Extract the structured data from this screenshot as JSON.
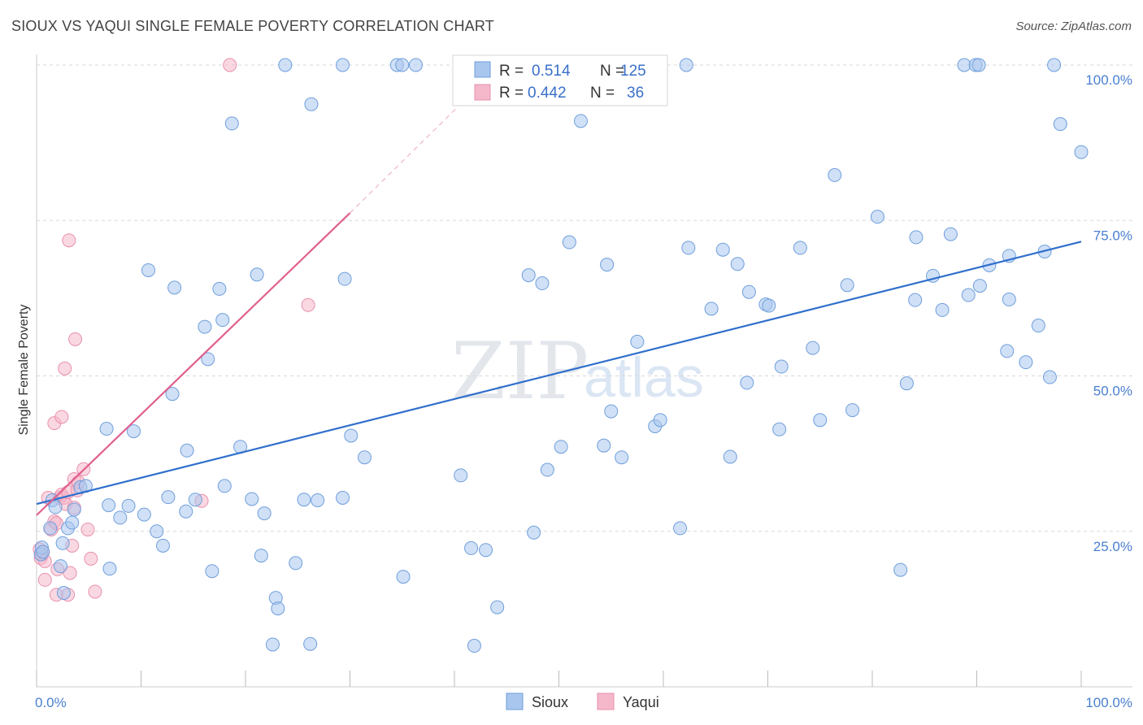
{
  "title": "SIOUX VS YAQUI SINGLE FEMALE POVERTY CORRELATION CHART",
  "source": "Source: ZipAtlas.com",
  "watermark": {
    "part1": "ZIP",
    "part2": "atlas"
  },
  "colors": {
    "sioux_fill": "#a9c6ee",
    "sioux_stroke": "#6f9fdc",
    "sioux_line": "#2f6fcc",
    "yaqui_fill": "#f5b8cb",
    "yaqui_stroke": "#e890ad",
    "yaqui_line": "#e0608e",
    "tick_text": "#4a7fcf",
    "grid": "#d8d8d8"
  },
  "legend_box": {
    "rows": [
      {
        "r_label": "R = ",
        "r_value": "0.514",
        "n_label": "N = ",
        "n_value": "125"
      },
      {
        "r_label": "R = ",
        "r_value": "0.442",
        "n_label": "N = ",
        "n_value": "36"
      }
    ]
  },
  "bottom_legend": [
    "Sioux",
    "Yaqui"
  ],
  "chart_data": {
    "type": "scatter",
    "title": "SIOUX VS YAQUI SINGLE FEMALE POVERTY CORRELATION CHART",
    "xlabel": "",
    "ylabel": "Single Female Poverty",
    "x_tick_labels": [
      "0.0%",
      "100.0%"
    ],
    "y_tick_labels": [
      "100.0%",
      "75.0%",
      "50.0%",
      "25.0%"
    ],
    "y_tick_values": [
      100,
      75,
      50,
      25
    ],
    "xlim": [
      0,
      100
    ],
    "ylim": [
      0,
      100
    ],
    "grid": true,
    "series": [
      {
        "name": "Sioux",
        "r": 0.514,
        "n": 125,
        "trend": {
          "x": [
            0,
            100
          ],
          "y": [
            29.4,
            71.6
          ]
        },
        "points": [
          [
            0.4,
            21.3
          ],
          [
            0.5,
            22.4
          ],
          [
            0.6,
            21.7
          ],
          [
            1.3,
            25.5
          ],
          [
            1.5,
            30.0
          ],
          [
            1.8,
            28.9
          ],
          [
            2.5,
            23.1
          ],
          [
            2.6,
            15.1
          ],
          [
            2.3,
            19.4
          ],
          [
            3.0,
            25.5
          ],
          [
            3.4,
            26.4
          ],
          [
            3.6,
            28.5
          ],
          [
            4.2,
            32.1
          ],
          [
            4.7,
            32.3
          ],
          [
            6.9,
            29.2
          ],
          [
            6.7,
            41.5
          ],
          [
            7.0,
            19.0
          ],
          [
            8.0,
            27.2
          ],
          [
            8.8,
            29.1
          ],
          [
            9.3,
            41.1
          ],
          [
            10.3,
            27.7
          ],
          [
            10.7,
            67.0
          ],
          [
            11.5,
            25.0
          ],
          [
            12.1,
            22.7
          ],
          [
            12.6,
            30.5
          ],
          [
            13.0,
            47.1
          ],
          [
            13.2,
            64.2
          ],
          [
            14.3,
            28.2
          ],
          [
            14.4,
            38.0
          ],
          [
            15.2,
            30.1
          ],
          [
            16.1,
            57.9
          ],
          [
            16.4,
            52.7
          ],
          [
            16.8,
            18.6
          ],
          [
            17.5,
            64.0
          ],
          [
            18.0,
            32.3
          ],
          [
            17.8,
            59.0
          ],
          [
            18.7,
            90.6
          ],
          [
            19.5,
            38.6
          ],
          [
            20.6,
            30.2
          ],
          [
            21.1,
            66.3
          ],
          [
            21.5,
            21.1
          ],
          [
            21.8,
            27.9
          ],
          [
            22.6,
            6.8
          ],
          [
            22.9,
            14.3
          ],
          [
            23.1,
            12.6
          ],
          [
            23.8,
            100.0
          ],
          [
            24.8,
            19.9
          ],
          [
            25.6,
            30.1
          ],
          [
            26.2,
            6.9
          ],
          [
            26.3,
            93.7
          ],
          [
            26.9,
            30.0
          ],
          [
            29.3,
            100.0
          ],
          [
            29.3,
            30.4
          ],
          [
            29.5,
            65.6
          ],
          [
            30.1,
            40.4
          ],
          [
            31.4,
            36.9
          ],
          [
            34.5,
            100.0
          ],
          [
            35.0,
            100.0
          ],
          [
            35.1,
            17.7
          ],
          [
            36.3,
            100.0
          ],
          [
            40.6,
            34.0
          ],
          [
            41.6,
            22.3
          ],
          [
            41.9,
            6.6
          ],
          [
            42.5,
            100.0
          ],
          [
            43.0,
            22.0
          ],
          [
            44.1,
            12.8
          ],
          [
            47.1,
            66.2
          ],
          [
            47.6,
            24.8
          ],
          [
            48.4,
            64.9
          ],
          [
            48.9,
            34.9
          ],
          [
            50.2,
            38.6
          ],
          [
            51.0,
            71.5
          ],
          [
            52.1,
            91.0
          ],
          [
            54.3,
            38.8
          ],
          [
            54.6,
            67.9
          ],
          [
            55.0,
            44.3
          ],
          [
            56.0,
            36.9
          ],
          [
            57.5,
            55.5
          ],
          [
            59.2,
            41.9
          ],
          [
            59.7,
            42.9
          ],
          [
            61.6,
            25.5
          ],
          [
            62.2,
            100.0
          ],
          [
            62.4,
            70.6
          ],
          [
            64.6,
            60.8
          ],
          [
            65.7,
            70.3
          ],
          [
            66.4,
            37.0
          ],
          [
            67.1,
            68.0
          ],
          [
            68.0,
            48.9
          ],
          [
            68.2,
            63.5
          ],
          [
            69.8,
            61.5
          ],
          [
            70.1,
            61.3
          ],
          [
            71.1,
            41.4
          ],
          [
            71.3,
            51.5
          ],
          [
            73.1,
            70.6
          ],
          [
            74.3,
            54.5
          ],
          [
            75.0,
            42.9
          ],
          [
            76.4,
            82.3
          ],
          [
            77.6,
            64.6
          ],
          [
            78.1,
            44.5
          ],
          [
            80.5,
            75.6
          ],
          [
            83.3,
            48.8
          ],
          [
            82.7,
            18.8
          ],
          [
            84.1,
            62.2
          ],
          [
            84.2,
            72.3
          ],
          [
            85.8,
            66.1
          ],
          [
            86.7,
            60.6
          ],
          [
            87.5,
            72.8
          ],
          [
            88.8,
            100.0
          ],
          [
            89.2,
            63.0
          ],
          [
            89.9,
            100.0
          ],
          [
            90.2,
            100.0
          ],
          [
            90.3,
            64.5
          ],
          [
            91.2,
            67.8
          ],
          [
            92.9,
            54.0
          ],
          [
            93.1,
            69.3
          ],
          [
            93.1,
            62.3
          ],
          [
            94.7,
            52.2
          ],
          [
            95.9,
            58.1
          ],
          [
            96.5,
            70.0
          ],
          [
            97.0,
            49.8
          ],
          [
            97.4,
            100.0
          ],
          [
            98.0,
            90.5
          ],
          [
            100.0,
            86.0
          ]
        ]
      },
      {
        "name": "Yaqui",
        "r": 0.442,
        "n": 36,
        "trend": {
          "x": [
            0,
            30
          ],
          "y": [
            27.6,
            76.2
          ],
          "dashed_extension": {
            "x": [
              30,
              43
            ],
            "y": [
              76.2,
              97.7
            ]
          }
        },
        "points": [
          [
            0.3,
            22.1
          ],
          [
            0.4,
            20.7
          ],
          [
            0.5,
            21.3
          ],
          [
            0.6,
            21.7
          ],
          [
            0.8,
            20.2
          ],
          [
            0.8,
            17.2
          ],
          [
            1.1,
            30.4
          ],
          [
            1.4,
            25.3
          ],
          [
            1.7,
            26.6
          ],
          [
            1.7,
            42.4
          ],
          [
            1.9,
            14.8
          ],
          [
            1.9,
            26.3
          ],
          [
            2.0,
            18.9
          ],
          [
            2.2,
            30.4
          ],
          [
            2.4,
            30.9
          ],
          [
            2.4,
            43.4
          ],
          [
            2.6,
            30.4
          ],
          [
            2.7,
            51.2
          ],
          [
            2.8,
            29.4
          ],
          [
            3.0,
            31.3
          ],
          [
            3.1,
            71.8
          ],
          [
            3.0,
            14.8
          ],
          [
            3.2,
            18.3
          ],
          [
            3.4,
            22.7
          ],
          [
            3.6,
            28.8
          ],
          [
            3.9,
            31.6
          ],
          [
            3.7,
            55.9
          ],
          [
            3.6,
            33.4
          ],
          [
            4.0,
            32.9
          ],
          [
            4.5,
            35.0
          ],
          [
            4.9,
            25.3
          ],
          [
            5.2,
            20.6
          ],
          [
            5.6,
            15.3
          ],
          [
            15.8,
            29.9
          ],
          [
            18.5,
            100.0
          ],
          [
            26.0,
            61.4
          ]
        ]
      }
    ]
  }
}
